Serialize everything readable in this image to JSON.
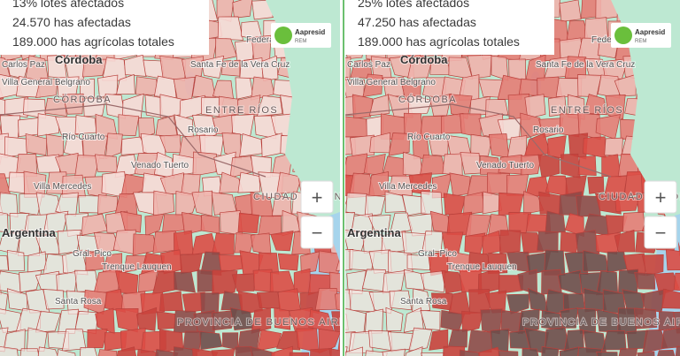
{
  "panels": [
    {
      "stats": [
        "13% lotes afectados",
        "24.570 has afectadas",
        "189.000 has agrícolas totales"
      ]
    },
    {
      "stats": [
        "25% lotes afectados",
        "47.250 has afectadas",
        "189.000 has agrícolas totales"
      ]
    }
  ],
  "logo": {
    "name": "Aapresid",
    "sub": "REM"
  },
  "zoom": {
    "in": "+",
    "out": "−"
  },
  "map_labels": [
    "Carlos Paz",
    "Córdoba",
    "Villa General Belgrano",
    "CÓRDOBA",
    "Federal",
    "Santa Fe de la Vera Cruz",
    "ENTRE RÍOS",
    "Rosario",
    "Río Cuarto",
    "Venado Tuerto",
    "Villa Mercedes",
    "CIUDAD AUTÓNOMA DE BUENOS AIRES",
    "Argentina",
    "Gral. Pico",
    "Trenque Lauquen",
    "Santa Rosa",
    "PROVINCIA DE BUENOS AIRES"
  ]
}
